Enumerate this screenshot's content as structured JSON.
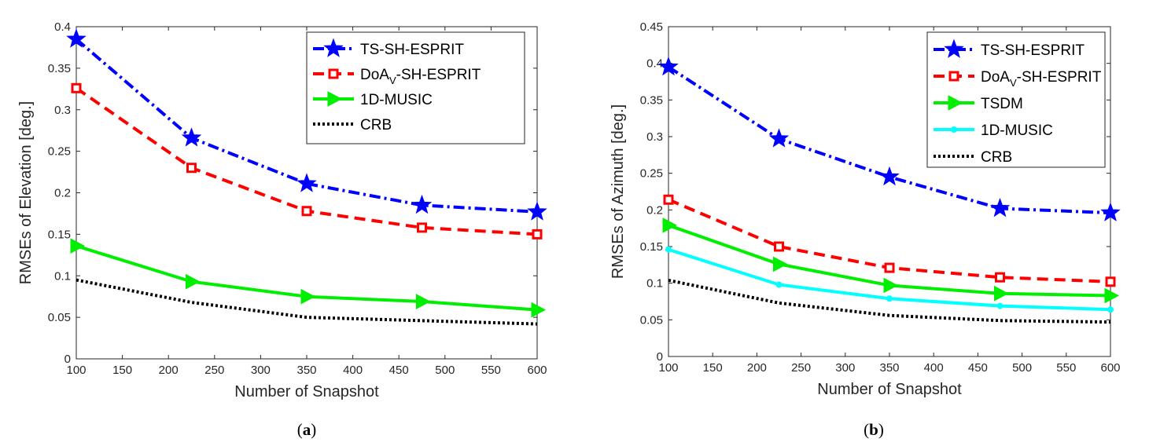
{
  "chart_data": [
    {
      "type": "line",
      "id": "a",
      "caption_open": "(",
      "caption_letter": "a",
      "caption_close": ")",
      "xlabel": "Number of Snapshot",
      "ylabel": "RMSEs of Elevation [deg.]",
      "xlim": [
        100,
        600
      ],
      "ylim": [
        0,
        0.4
      ],
      "xticks": [
        "100",
        "150",
        "200",
        "250",
        "300",
        "350",
        "400",
        "450",
        "500",
        "550",
        "600"
      ],
      "yticks": [
        "0",
        "0.05",
        "0.1",
        "0.15",
        "0.2",
        "0.25",
        "0.3",
        "0.35",
        "0.4"
      ],
      "legend_position": "top-right",
      "x": [
        100,
        225,
        350,
        475,
        600
      ],
      "series": [
        {
          "name": "TS-SH-ESPRIT",
          "label_main": "TS-SH-ESPRIT",
          "label_sub": "",
          "label_tail": "",
          "values": [
            0.385,
            0.266,
            0.211,
            0.185,
            0.177
          ],
          "color": "#0000ff",
          "dash": "14 5 3 5",
          "marker": "star"
        },
        {
          "name": "DoAV-SH-ESPRIT",
          "label_main": "DoA",
          "label_sub": "V",
          "label_tail": "-SH-ESPRIT",
          "values": [
            0.326,
            0.23,
            0.178,
            0.158,
            0.15
          ],
          "color": "#ff0000",
          "dash": "14 8",
          "marker": "square"
        },
        {
          "name": "1D-MUSIC",
          "label_main": "1D-MUSIC",
          "label_sub": "",
          "label_tail": "",
          "values": [
            0.136,
            0.093,
            0.075,
            0.069,
            0.059
          ],
          "color": "#00ee00",
          "dash": "",
          "marker": "triangle"
        },
        {
          "name": "CRB",
          "label_main": "CRB",
          "label_sub": "",
          "label_tail": "",
          "values": [
            0.095,
            0.068,
            0.05,
            0.046,
            0.042
          ],
          "color": "#000000",
          "dash": "3 3",
          "marker": "none"
        }
      ]
    },
    {
      "type": "line",
      "id": "b",
      "caption_open": "(",
      "caption_letter": "b",
      "caption_close": ")",
      "xlabel": "Number of Snapshot",
      "ylabel": "RMSEs of Azimuth [deg.]",
      "xlim": [
        100,
        600
      ],
      "ylim": [
        0,
        0.45
      ],
      "xticks": [
        "100",
        "150",
        "200",
        "250",
        "300",
        "350",
        "400",
        "450",
        "500",
        "550",
        "600"
      ],
      "yticks": [
        "0",
        "0.05",
        "0.1",
        "0.15",
        "0.2",
        "0.25",
        "0.3",
        "0.35",
        "0.4",
        "0.45"
      ],
      "legend_position": "top-right",
      "x": [
        100,
        225,
        350,
        475,
        600
      ],
      "series": [
        {
          "name": "TS-SH-ESPRIT",
          "label_main": "TS-SH-ESPRIT",
          "label_sub": "",
          "label_tail": "",
          "values": [
            0.395,
            0.297,
            0.245,
            0.202,
            0.196
          ],
          "color": "#0000ff",
          "dash": "14 5 3 5",
          "marker": "star"
        },
        {
          "name": "DoAV-SH-ESPRIT",
          "label_main": "DoA",
          "label_sub": "V",
          "label_tail": "-SH-ESPRIT",
          "values": [
            0.214,
            0.15,
            0.121,
            0.108,
            0.102
          ],
          "color": "#ff0000",
          "dash": "14 8",
          "marker": "square"
        },
        {
          "name": "TSDM",
          "label_main": "TSDM",
          "label_sub": "",
          "label_tail": "",
          "values": [
            0.179,
            0.126,
            0.097,
            0.086,
            0.083
          ],
          "color": "#00ee00",
          "dash": "",
          "marker": "triangle"
        },
        {
          "name": "1D-MUSIC",
          "label_main": "1D-MUSIC",
          "label_sub": "",
          "label_tail": "",
          "values": [
            0.146,
            0.098,
            0.079,
            0.069,
            0.064
          ],
          "color": "#00ffff",
          "dash": "",
          "marker": "dot"
        },
        {
          "name": "CRB",
          "label_main": "CRB",
          "label_sub": "",
          "label_tail": "",
          "values": [
            0.104,
            0.073,
            0.056,
            0.049,
            0.047
          ],
          "color": "#000000",
          "dash": "3 3",
          "marker": "none"
        }
      ]
    }
  ]
}
